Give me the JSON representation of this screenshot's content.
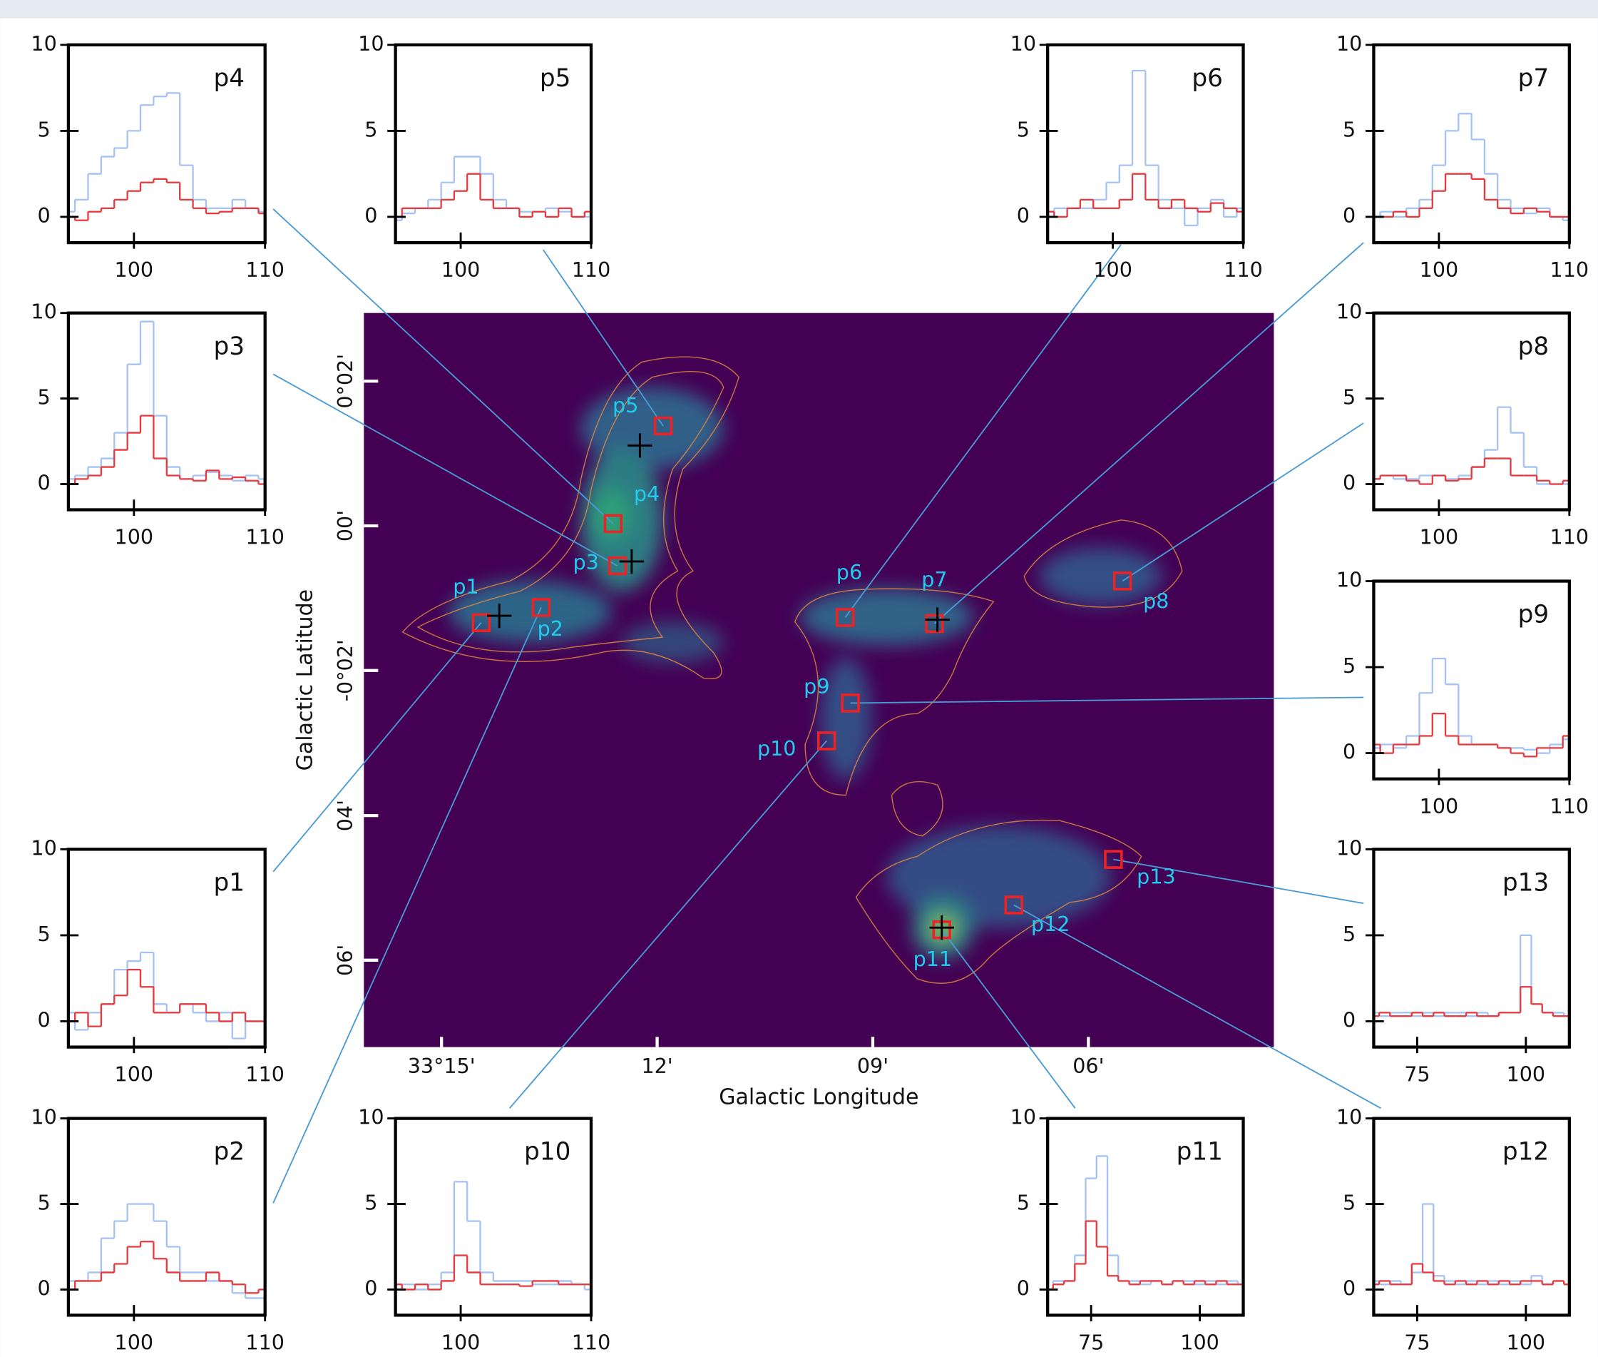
{
  "chart_data": [
    {
      "type": "scatter",
      "xlabel": "Galactic Longitude",
      "ylabel": "Galactic Latitude",
      "xlim": [
        33.268,
        33.057
      ],
      "ylim": [
        -0.12,
        0.049
      ],
      "xticks": [
        {
          "value": 33.25,
          "label": "33°15'"
        },
        {
          "value": 33.2,
          "label": "12'"
        },
        {
          "value": 33.15,
          "label": "09'"
        },
        {
          "value": 33.1,
          "label": "06'"
        }
      ],
      "yticks": [
        {
          "value": 0.0333,
          "label": "0°02'"
        },
        {
          "value": 0,
          "label": "00'"
        },
        {
          "value": -0.0333,
          "label": "-0°02'"
        },
        {
          "value": -0.0667,
          "label": "04'"
        },
        {
          "value": -0.1,
          "label": "06'"
        }
      ],
      "background": "#440154",
      "label_color": "#22ccee",
      "series": [
        {
          "marker": "square",
          "color": "#ee2222",
          "x": [
            33.2408,
            33.2269,
            33.2092,
            33.2102,
            33.1986,
            33.1564,
            33.1357,
            33.0921,
            33.1552,
            33.1607,
            33.134,
            33.1173,
            33.0942
          ],
          "y": [
            -0.0223,
            -0.0188,
            -0.0092,
            0.0005,
            0.023,
            -0.0211,
            -0.0225,
            -0.0127,
            -0.0408,
            -0.0495,
            -0.093,
            -0.0873,
            -0.0768
          ],
          "labels": [
            "p1",
            "p2",
            "p3",
            "p4",
            "p5",
            "p6",
            "p7",
            "p8",
            "p9",
            "p10",
            "p11",
            "p12",
            "p13"
          ]
        },
        {
          "marker": "plus",
          "color": "#000000",
          "x": [
            33.2366,
            33.204,
            33.2059,
            33.135,
            33.134
          ],
          "y": [
            -0.0207,
            0.0185,
            -0.0082,
            -0.0216,
            -0.0925
          ]
        }
      ]
    },
    {
      "type": "step",
      "title": "p1",
      "xlim": [
        95,
        110
      ],
      "ylim": [
        -1.5,
        10
      ],
      "xticks": [
        100,
        110
      ],
      "yticks": [
        0,
        5,
        10
      ],
      "x": [
        95,
        96,
        97,
        98,
        99,
        100,
        101,
        102,
        103,
        104,
        105,
        106,
        107,
        108,
        109,
        110
      ],
      "series": [
        {
          "color": "#a4c2f4",
          "values": [
            0.5,
            -0.5,
            0.5,
            1,
            3,
            3.5,
            4,
            1,
            0.5,
            1,
            0.5,
            0,
            0.5,
            -1,
            0,
            0
          ]
        },
        {
          "color": "#e8383d",
          "values": [
            0,
            0.5,
            -0.3,
            1,
            1.5,
            3,
            2,
            0.5,
            0.5,
            1,
            1,
            0.5,
            0,
            0.5,
            0,
            0
          ]
        }
      ]
    },
    {
      "type": "step",
      "title": "p2",
      "xlim": [
        95,
        110
      ],
      "ylim": [
        -1.5,
        10
      ],
      "xticks": [
        100,
        110
      ],
      "yticks": [
        0,
        5,
        10
      ],
      "x": [
        95,
        96,
        97,
        98,
        99,
        100,
        101,
        102,
        103,
        104,
        105,
        106,
        107,
        108,
        109,
        110
      ],
      "series": [
        {
          "color": "#a4c2f4",
          "values": [
            0.5,
            0.5,
            1,
            3,
            4,
            5,
            5,
            4,
            2.5,
            1,
            1,
            0.5,
            0.5,
            -0.2,
            -0.5,
            -0.5
          ]
        },
        {
          "color": "#e8383d",
          "values": [
            0,
            0.5,
            0.5,
            1,
            1.5,
            2.5,
            2.8,
            1.8,
            1,
            0.5,
            0.5,
            1,
            0.5,
            0.3,
            -0.2,
            0
          ]
        }
      ]
    },
    {
      "type": "step",
      "title": "p3",
      "xlim": [
        95,
        110
      ],
      "ylim": [
        -1.5,
        10
      ],
      "xticks": [
        100,
        110
      ],
      "yticks": [
        0,
        5,
        10
      ],
      "x": [
        95,
        96,
        97,
        98,
        99,
        100,
        101,
        102,
        103,
        104,
        105,
        106,
        107,
        108,
        109,
        110
      ],
      "series": [
        {
          "color": "#a4c2f4",
          "values": [
            0.3,
            0.5,
            1,
            1.5,
            3,
            7,
            9.5,
            4,
            1,
            0.3,
            0.5,
            0.7,
            0.5,
            0.2,
            0.5,
            0.3
          ]
        },
        {
          "color": "#e8383d",
          "values": [
            0,
            0.3,
            0.5,
            1,
            2,
            3,
            4,
            1.5,
            0.5,
            0.3,
            0.2,
            0.8,
            0.3,
            0.4,
            0.2,
            0
          ]
        }
      ]
    },
    {
      "type": "step",
      "title": "p4",
      "xlim": [
        95,
        110
      ],
      "ylim": [
        -1.5,
        10
      ],
      "xticks": [
        100,
        110
      ],
      "yticks": [
        0,
        5,
        10
      ],
      "x": [
        95,
        96,
        97,
        98,
        99,
        100,
        101,
        102,
        103,
        104,
        105,
        106,
        107,
        108,
        109,
        110
      ],
      "series": [
        {
          "color": "#a4c2f4",
          "values": [
            0.3,
            1,
            2.5,
            3.5,
            4,
            5,
            6.5,
            7,
            7.2,
            3,
            1,
            0.5,
            0.5,
            1,
            0.5,
            0.3
          ]
        },
        {
          "color": "#e8383d",
          "values": [
            0,
            -0.2,
            0.3,
            0.5,
            1,
            1.5,
            2,
            2.2,
            2,
            1,
            0.5,
            0.2,
            0.3,
            0.5,
            0.5,
            0.2
          ]
        }
      ]
    },
    {
      "type": "step",
      "title": "p5",
      "xlim": [
        95,
        110
      ],
      "ylim": [
        -1.5,
        10
      ],
      "xticks": [
        100,
        110
      ],
      "yticks": [
        0,
        5,
        10
      ],
      "x": [
        95,
        96,
        97,
        98,
        99,
        100,
        101,
        102,
        103,
        104,
        105,
        106,
        107,
        108,
        109,
        110
      ],
      "series": [
        {
          "color": "#a4c2f4",
          "values": [
            -0.2,
            0.2,
            0.5,
            1,
            2,
            3.5,
            3.5,
            2.5,
            1,
            0.5,
            0.3,
            0.3,
            0.5,
            0.3,
            0,
            0
          ]
        },
        {
          "color": "#e8383d",
          "values": [
            0,
            0.5,
            0.5,
            0.5,
            1,
            1.5,
            2.5,
            1,
            0.5,
            0.5,
            0,
            0.3,
            0,
            0.5,
            0,
            0.3
          ]
        }
      ]
    },
    {
      "type": "step",
      "title": "p6",
      "xlim": [
        95,
        110
      ],
      "ylim": [
        -1.5,
        10
      ],
      "xticks": [
        100,
        110
      ],
      "yticks": [
        0,
        5,
        10
      ],
      "x": [
        95,
        96,
        97,
        98,
        99,
        100,
        101,
        102,
        103,
        104,
        105,
        106,
        107,
        108,
        109,
        110
      ],
      "series": [
        {
          "color": "#a4c2f4",
          "values": [
            0.3,
            0.5,
            0.5,
            0.5,
            1,
            2,
            3,
            8.5,
            3,
            1,
            0.5,
            -0.5,
            0.5,
            1,
            0,
            0.5
          ]
        },
        {
          "color": "#e8383d",
          "values": [
            0.3,
            0,
            0.5,
            1,
            0.5,
            0.5,
            1,
            2.5,
            1,
            0.5,
            1,
            0.5,
            0.3,
            0.8,
            0.5,
            0.3
          ]
        }
      ]
    },
    {
      "type": "step",
      "title": "p7",
      "xlim": [
        95,
        110
      ],
      "ylim": [
        -1.5,
        10
      ],
      "xticks": [
        100,
        110
      ],
      "yticks": [
        0,
        5,
        10
      ],
      "x": [
        95,
        96,
        97,
        98,
        99,
        100,
        101,
        102,
        103,
        104,
        105,
        106,
        107,
        108,
        109,
        110
      ],
      "series": [
        {
          "color": "#a4c2f4",
          "values": [
            0,
            0.3,
            0,
            0.5,
            1,
            3,
            5,
            6,
            4.5,
            2.5,
            1,
            0.5,
            0.2,
            0.5,
            0,
            -0.2
          ]
        },
        {
          "color": "#e8383d",
          "values": [
            0,
            0,
            0.3,
            0,
            0.5,
            1.5,
            2.5,
            2.5,
            2.2,
            1,
            0.5,
            0.2,
            0.5,
            0.3,
            0,
            0
          ]
        }
      ]
    },
    {
      "type": "step",
      "title": "p8",
      "xlim": [
        95,
        110
      ],
      "ylim": [
        -1.5,
        10
      ],
      "xticks": [
        100,
        110
      ],
      "yticks": [
        0,
        5,
        10
      ],
      "x": [
        95,
        96,
        97,
        98,
        99,
        100,
        101,
        102,
        103,
        104,
        105,
        106,
        107,
        108,
        109,
        110
      ],
      "series": [
        {
          "color": "#a4c2f4",
          "values": [
            0.3,
            0.5,
            0.3,
            0.3,
            0.5,
            0.5,
            0.3,
            0.5,
            1,
            2,
            4.5,
            3,
            1,
            0,
            0,
            0
          ]
        },
        {
          "color": "#e8383d",
          "values": [
            0.3,
            0.5,
            0.5,
            0.2,
            0,
            0.5,
            0.2,
            0.3,
            1,
            1.5,
            1.5,
            0.5,
            0.5,
            0.2,
            0,
            0.2
          ]
        }
      ]
    },
    {
      "type": "step",
      "title": "p9",
      "xlim": [
        95,
        110
      ],
      "ylim": [
        -1.5,
        10
      ],
      "xticks": [
        100,
        110
      ],
      "yticks": [
        0,
        5,
        10
      ],
      "x": [
        95,
        96,
        97,
        98,
        99,
        100,
        101,
        102,
        103,
        104,
        105,
        106,
        107,
        108,
        109,
        110
      ],
      "series": [
        {
          "color": "#a4c2f4",
          "values": [
            0.3,
            0.5,
            0.3,
            1,
            3.5,
            5.5,
            4,
            1,
            0.5,
            0.5,
            0.3,
            0.3,
            0.2,
            0,
            0.5,
            0.8
          ]
        },
        {
          "color": "#e8383d",
          "values": [
            0.5,
            0,
            0.5,
            0.5,
            1,
            2.3,
            1,
            0.5,
            0.5,
            0.5,
            0.3,
            0,
            -0.2,
            0.3,
            0.3,
            1
          ]
        }
      ]
    },
    {
      "type": "step",
      "title": "p10",
      "xlim": [
        95,
        110
      ],
      "ylim": [
        -1.5,
        10
      ],
      "xticks": [
        100,
        110
      ],
      "yticks": [
        0,
        5,
        10
      ],
      "x": [
        95,
        96,
        97,
        98,
        99,
        100,
        101,
        102,
        103,
        104,
        105,
        106,
        107,
        108,
        109,
        110
      ],
      "series": [
        {
          "color": "#a4c2f4",
          "values": [
            0,
            0.3,
            0,
            0.3,
            1,
            6.3,
            4,
            1,
            0.5,
            0.5,
            0.5,
            0.3,
            0.3,
            0.5,
            0.3,
            0
          ]
        },
        {
          "color": "#e8383d",
          "values": [
            0.3,
            0,
            0.3,
            0,
            0.5,
            2,
            1,
            0.3,
            0.3,
            0.3,
            0.2,
            0.5,
            0.5,
            0.3,
            0.3,
            0.3
          ]
        }
      ]
    },
    {
      "type": "step",
      "title": "p11",
      "xlim": [
        65,
        110
      ],
      "ylim": [
        -1.5,
        10
      ],
      "xticks": [
        75,
        100
      ],
      "yticks": [
        0,
        5,
        10
      ],
      "x": [
        65,
        67.5,
        70,
        72.5,
        75,
        77.5,
        80,
        82.5,
        85,
        87.5,
        90,
        92.5,
        95,
        97.5,
        100,
        102.5,
        105,
        107.5,
        110
      ],
      "series": [
        {
          "color": "#a4c2f4",
          "values": [
            0,
            0.5,
            0.5,
            2,
            6.5,
            7.8,
            2,
            0.5,
            0.5,
            0.3,
            0.5,
            0.3,
            0.5,
            0.5,
            0.3,
            0.5,
            0.3,
            0.5,
            0.3
          ]
        },
        {
          "color": "#e8383d",
          "values": [
            0,
            0.3,
            0.5,
            1.5,
            4,
            2.5,
            0.8,
            0.5,
            0.3,
            0.5,
            0.5,
            0.3,
            0.5,
            0.3,
            0.5,
            0.3,
            0.5,
            0.3,
            0.3
          ]
        }
      ]
    },
    {
      "type": "step",
      "title": "p12",
      "xlim": [
        65,
        110
      ],
      "ylim": [
        -1.5,
        10
      ],
      "xticks": [
        75,
        100
      ],
      "yticks": [
        0,
        5,
        10
      ],
      "x": [
        65,
        67.5,
        70,
        72.5,
        75,
        77.5,
        80,
        82.5,
        85,
        87.5,
        90,
        92.5,
        95,
        97.5,
        100,
        102.5,
        105,
        107.5,
        110
      ],
      "series": [
        {
          "color": "#a4c2f4",
          "values": [
            0.5,
            0.3,
            0.5,
            0.3,
            1,
            5,
            0.8,
            0.5,
            0.3,
            0.5,
            0.3,
            0.5,
            0.3,
            0.5,
            0.3,
            0.8,
            0.3,
            0.5,
            0.3
          ]
        },
        {
          "color": "#e8383d",
          "values": [
            0.3,
            0.5,
            0.3,
            0.3,
            1.5,
            1,
            0.5,
            0.3,
            0.5,
            0.3,
            0.5,
            0.3,
            0.5,
            0.3,
            0.5,
            0.5,
            0.3,
            0.5,
            0.3
          ]
        }
      ]
    },
    {
      "type": "step",
      "title": "p13",
      "xlim": [
        65,
        110
      ],
      "ylim": [
        -1.5,
        10
      ],
      "xticks": [
        75,
        100
      ],
      "yticks": [
        0,
        5,
        10
      ],
      "x": [
        65,
        67.5,
        70,
        72.5,
        75,
        77.5,
        80,
        82.5,
        85,
        87.5,
        90,
        92.5,
        95,
        97.5,
        100,
        102.5,
        105,
        107.5,
        110
      ],
      "series": [
        {
          "color": "#a4c2f4",
          "values": [
            0.5,
            0.3,
            0.5,
            0.5,
            0.3,
            0.5,
            0.3,
            0.5,
            0.5,
            0.3,
            0.5,
            0.3,
            0.5,
            0.5,
            5,
            1,
            0.5,
            0.5,
            0.3
          ]
        },
        {
          "color": "#e8383d",
          "values": [
            0.3,
            0.5,
            0.3,
            0.3,
            0.5,
            0.3,
            0.5,
            0.3,
            0.3,
            0.5,
            0.3,
            0.3,
            0.5,
            0.5,
            2,
            1,
            0.5,
            0.3,
            0.3
          ]
        }
      ]
    }
  ]
}
